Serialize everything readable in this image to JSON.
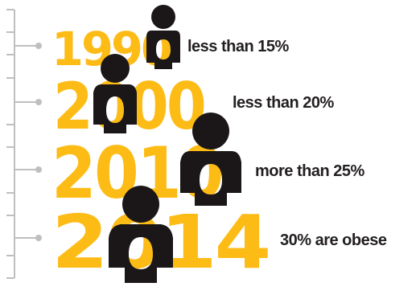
{
  "colors": {
    "year": "#FDBB16",
    "figure": "#1B1718",
    "timeline": "#BFBFBF",
    "label": "#231F20"
  },
  "rows": [
    {
      "year": "1990",
      "stat": "less than 15%"
    },
    {
      "year": "2000",
      "stat": "less than 20%"
    },
    {
      "year": "2010",
      "stat": "more than 25%"
    },
    {
      "year": "2014",
      "stat": "30% are obese"
    }
  ]
}
